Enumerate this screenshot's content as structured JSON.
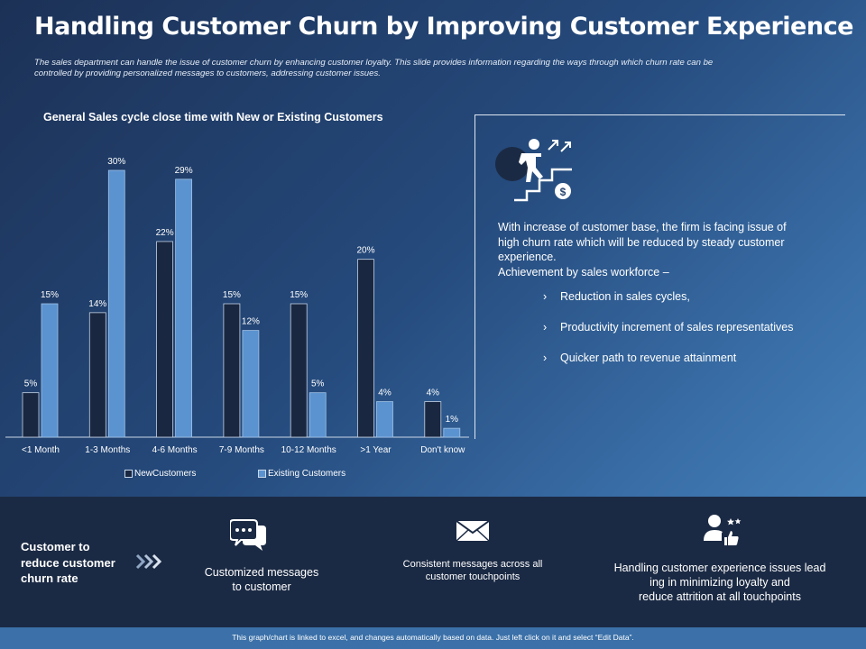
{
  "header": {
    "title": "Handling Customer Churn by Improving Customer Experience",
    "subtitle_line1": "The sales department can handle the issue of customer churn by enhancing customer loyalty. This slide provides information regarding the ways through which churn rate can be",
    "subtitle_line2": "controlled by providing personalized messages to customers, addressing customer issues."
  },
  "colors": {
    "new_customers": "#1a2740",
    "existing_customers": "#5b93d0",
    "bottom_band": "#1b2a44",
    "footer": "#3b70a8"
  },
  "chart_data": {
    "type": "bar",
    "title": "General Sales cycle close time with New or Existing Customers",
    "categories": [
      "<1 Month",
      "1-3 Months",
      "4-6 Months",
      "7-9 Months",
      "10-12 Months",
      ">1 Year",
      "Don't know"
    ],
    "series": [
      {
        "name": "NewCustomers",
        "values": [
          5,
          14,
          22,
          15,
          15,
          20,
          4
        ],
        "labels": [
          "5%",
          "14%",
          "22%",
          "15%",
          "15%",
          "20%",
          "4%"
        ]
      },
      {
        "name": "Existing Customers",
        "values": [
          15,
          30,
          29,
          12,
          5,
          4,
          1
        ],
        "labels": [
          "15%",
          "30%",
          "29%",
          "12%",
          "5%",
          "4%",
          "1%"
        ]
      }
    ],
    "ylim": [
      0,
      30
    ],
    "grid": false,
    "legend": "bottom"
  },
  "right_panel": {
    "icon": "climbing-stairs-icon",
    "description_lines": [
      "With increase of customer base, the firm is facing issue of",
      "high churn rate which will  be reduced by steady customer",
      "experience.",
      "Achievement by sales workforce –"
    ],
    "bullet_marker": "›",
    "bullets": [
      "Reduction in sales cycles,",
      "Productivity increment of sales representatives",
      "Quicker path to revenue attainment"
    ]
  },
  "bottom": {
    "label_lines": [
      "Customer to",
      "reduce customer",
      "churn rate"
    ],
    "items": [
      {
        "icon": "chat-bubbles-icon",
        "lines": [
          "Customized messages",
          "to customer"
        ]
      },
      {
        "icon": "envelope-icon",
        "lines": [
          "Consistent messages across all",
          "customer touchpoints"
        ]
      },
      {
        "icon": "user-thumbs-up-icon",
        "lines": [
          "Handling customer experience issues lead",
          "ing in minimizing  loyalty and",
          "reduce attrition at all touchpoints"
        ]
      }
    ]
  },
  "footer": {
    "text": "This graph/chart is linked to excel, and changes automatically based on data. Just left click on it and select “Edit Data”."
  }
}
